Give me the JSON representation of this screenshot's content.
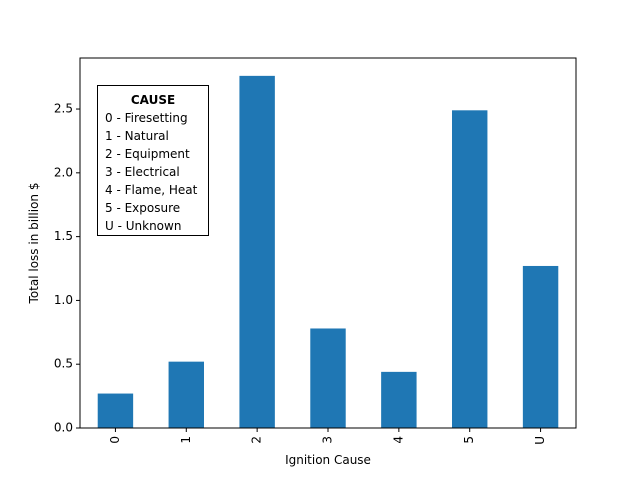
{
  "chart_data": {
    "type": "bar",
    "categories": [
      "0",
      "1",
      "2",
      "3",
      "4",
      "5",
      "U"
    ],
    "values": [
      0.27,
      0.52,
      2.76,
      0.78,
      0.44,
      2.49,
      1.27
    ],
    "xlabel": "Ignition Cause",
    "ylabel": "Total loss in billion $",
    "ylim": [
      0,
      2.9
    ],
    "yticks": [
      "0.0",
      "0.5",
      "1.0",
      "1.5",
      "2.0",
      "2.5"
    ],
    "bar_color": "#1f77b4",
    "grid": false,
    "legend": {
      "title": "CAUSE",
      "placement": "top-left",
      "entries": [
        "0 - Firesetting",
        "1 - Natural",
        "2 - Equipment",
        "3 - Electrical",
        "4 - Flame, Heat",
        "5 - Exposure",
        "U - Unknown"
      ]
    }
  }
}
